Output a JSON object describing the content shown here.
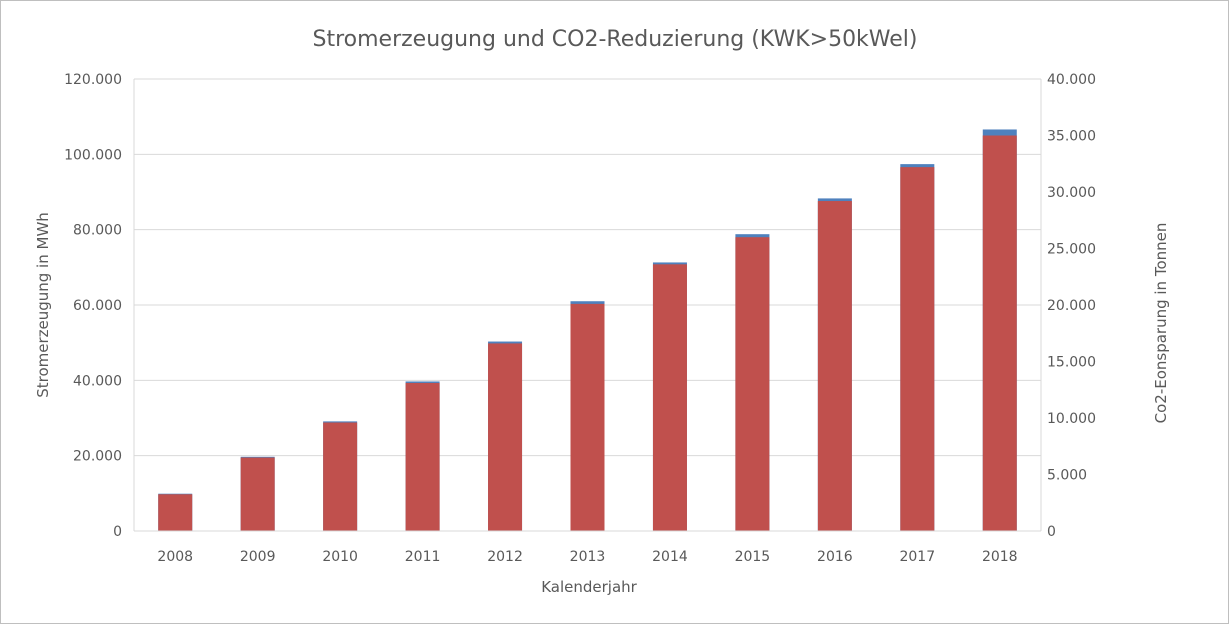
{
  "chart_data": {
    "type": "bar",
    "title": "Stromerzeugung  und CO2-Reduzierung  (KWK>50kWel)",
    "xlabel": "Kalenderjahr",
    "ylabel": "Stromerzeugung in MWh",
    "y2label": "Co2-Eonsparung in Tonnen",
    "categories": [
      "2008",
      "2009",
      "2010",
      "2011",
      "2012",
      "2013",
      "2014",
      "2015",
      "2016",
      "2017",
      "2018"
    ],
    "ylim": [
      0,
      120000
    ],
    "y_ticks": [
      0,
      20000,
      40000,
      60000,
      80000,
      100000,
      120000
    ],
    "y_tick_labels": [
      "0",
      "20.000",
      "40.000",
      "60.000",
      "80.000",
      "100.000",
      "120.000"
    ],
    "y2lim": [
      0,
      40000
    ],
    "y2_ticks": [
      0,
      5000,
      10000,
      15000,
      20000,
      25000,
      30000,
      35000,
      40000
    ],
    "y2_tick_labels": [
      "0",
      "5.000",
      "10.000",
      "15.000",
      "20.000",
      "25.000",
      "30.000",
      "35.000",
      "40.000"
    ],
    "grid": true,
    "legend": "none",
    "series": [
      {
        "axis": "primary",
        "color": "#4f81bd",
        "values": [
          9900,
          19700,
          29100,
          39700,
          50300,
          61000,
          71300,
          78800,
          88300,
          97400,
          106600
        ]
      },
      {
        "axis": "secondary",
        "color": "#c0504d",
        "values": [
          3250,
          6500,
          9600,
          13100,
          16600,
          20100,
          23600,
          26000,
          29200,
          32200,
          35000
        ]
      }
    ]
  }
}
